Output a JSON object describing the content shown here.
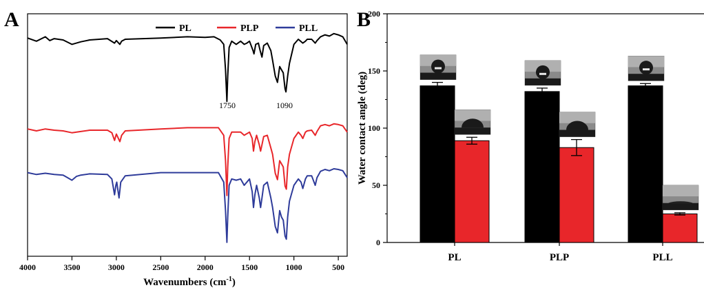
{
  "chart_data": [
    {
      "panel": "A",
      "type": "line",
      "xlabel": "Wavenumbers (cm",
      "xlabel_sup": "-1",
      "xlabel_end": ")",
      "xlim": [
        4000,
        400
      ],
      "xticks": [
        "4000",
        "3500",
        "3000",
        "2500",
        "2000",
        "1500",
        "1000",
        "500"
      ],
      "legend_position": "top-right",
      "annotations": [
        "1750",
        "1090"
      ],
      "series": [
        {
          "name": "PL",
          "color": "#000000",
          "offset": 0.9,
          "points": [
            [
              4000,
              0
            ],
            [
              3900,
              -0.05
            ],
            [
              3800,
              0.02
            ],
            [
              3750,
              -0.04
            ],
            [
              3700,
              -0.01
            ],
            [
              3600,
              -0.03
            ],
            [
              3500,
              -0.1
            ],
            [
              3400,
              -0.06
            ],
            [
              3300,
              -0.03
            ],
            [
              3100,
              -0.01
            ],
            [
              3020,
              -0.08
            ],
            [
              3000,
              -0.04
            ],
            [
              2960,
              -0.1
            ],
            [
              2940,
              -0.05
            ],
            [
              2900,
              -0.02
            ],
            [
              2500,
              0
            ],
            [
              2200,
              0.02
            ],
            [
              2000,
              0.01
            ],
            [
              1900,
              0.02
            ],
            [
              1830,
              -0.03
            ],
            [
              1790,
              -0.1
            ],
            [
              1770,
              -0.5
            ],
            [
              1755,
              -1.0
            ],
            [
              1745,
              -0.6
            ],
            [
              1730,
              -0.15
            ],
            [
              1700,
              -0.05
            ],
            [
              1650,
              -0.1
            ],
            [
              1600,
              -0.05
            ],
            [
              1560,
              -0.1
            ],
            [
              1530,
              -0.08
            ],
            [
              1500,
              -0.05
            ],
            [
              1460,
              -0.2
            ],
            [
              1450,
              -0.25
            ],
            [
              1430,
              -0.1
            ],
            [
              1400,
              -0.08
            ],
            [
              1380,
              -0.2
            ],
            [
              1360,
              -0.3
            ],
            [
              1340,
              -0.12
            ],
            [
              1300,
              -0.08
            ],
            [
              1260,
              -0.2
            ],
            [
              1240,
              -0.35
            ],
            [
              1210,
              -0.6
            ],
            [
              1185,
              -0.7
            ],
            [
              1160,
              -0.45
            ],
            [
              1140,
              -0.5
            ],
            [
              1120,
              -0.55
            ],
            [
              1100,
              -0.8
            ],
            [
              1090,
              -0.85
            ],
            [
              1070,
              -0.6
            ],
            [
              1050,
              -0.4
            ],
            [
              1000,
              -0.1
            ],
            [
              950,
              -0.02
            ],
            [
              900,
              -0.08
            ],
            [
              870,
              -0.05
            ],
            [
              850,
              -0.02
            ],
            [
              800,
              -0.02
            ],
            [
              760,
              -0.08
            ],
            [
              740,
              -0.04
            ],
            [
              700,
              0.02
            ],
            [
              650,
              0.05
            ],
            [
              600,
              0.03
            ],
            [
              550,
              0.07
            ],
            [
              500,
              0.05
            ],
            [
              450,
              0.02
            ],
            [
              400,
              -0.1
            ]
          ]
        },
        {
          "name": "PLP",
          "color": "#e8262a",
          "offset": 0.525,
          "points": [
            [
              4000,
              0
            ],
            [
              3900,
              -0.03
            ],
            [
              3800,
              0
            ],
            [
              3700,
              -0.02
            ],
            [
              3600,
              -0.03
            ],
            [
              3500,
              -0.06
            ],
            [
              3400,
              -0.04
            ],
            [
              3300,
              -0.02
            ],
            [
              3100,
              -0.02
            ],
            [
              3050,
              -0.06
            ],
            [
              3020,
              -0.18
            ],
            [
              3000,
              -0.08
            ],
            [
              2960,
              -0.2
            ],
            [
              2940,
              -0.1
            ],
            [
              2900,
              -0.03
            ],
            [
              2500,
              0
            ],
            [
              2200,
              0.02
            ],
            [
              2000,
              0.02
            ],
            [
              1850,
              0.02
            ],
            [
              1790,
              -0.1
            ],
            [
              1770,
              -0.5
            ],
            [
              1755,
              -1.05
            ],
            [
              1745,
              -0.6
            ],
            [
              1730,
              -0.15
            ],
            [
              1700,
              -0.05
            ],
            [
              1650,
              -0.05
            ],
            [
              1600,
              -0.05
            ],
            [
              1560,
              -0.1
            ],
            [
              1500,
              -0.05
            ],
            [
              1470,
              -0.15
            ],
            [
              1455,
              -0.35
            ],
            [
              1440,
              -0.2
            ],
            [
              1420,
              -0.1
            ],
            [
              1390,
              -0.25
            ],
            [
              1375,
              -0.35
            ],
            [
              1360,
              -0.25
            ],
            [
              1340,
              -0.12
            ],
            [
              1300,
              -0.1
            ],
            [
              1260,
              -0.3
            ],
            [
              1240,
              -0.4
            ],
            [
              1210,
              -0.7
            ],
            [
              1185,
              -0.8
            ],
            [
              1160,
              -0.5
            ],
            [
              1140,
              -0.55
            ],
            [
              1120,
              -0.6
            ],
            [
              1100,
              -0.9
            ],
            [
              1085,
              -0.95
            ],
            [
              1070,
              -0.6
            ],
            [
              1050,
              -0.4
            ],
            [
              1000,
              -0.15
            ],
            [
              950,
              -0.05
            ],
            [
              920,
              -0.1
            ],
            [
              900,
              -0.15
            ],
            [
              870,
              -0.05
            ],
            [
              850,
              -0.03
            ],
            [
              800,
              -0.02
            ],
            [
              760,
              -0.1
            ],
            [
              740,
              -0.04
            ],
            [
              700,
              0.05
            ],
            [
              650,
              0.07
            ],
            [
              600,
              0.05
            ],
            [
              550,
              0.08
            ],
            [
              500,
              0.07
            ],
            [
              450,
              0.05
            ],
            [
              400,
              -0.05
            ]
          ]
        },
        {
          "name": "PLL",
          "color": "#2e3b9a",
          "offset": 0.345,
          "points": [
            [
              4000,
              0
            ],
            [
              3900,
              -0.03
            ],
            [
              3800,
              -0.01
            ],
            [
              3700,
              -0.03
            ],
            [
              3600,
              -0.04
            ],
            [
              3550,
              -0.08
            ],
            [
              3500,
              -0.12
            ],
            [
              3450,
              -0.06
            ],
            [
              3400,
              -0.04
            ],
            [
              3300,
              -0.02
            ],
            [
              3100,
              -0.03
            ],
            [
              3050,
              -0.1
            ],
            [
              3020,
              -0.35
            ],
            [
              3005,
              -0.2
            ],
            [
              2995,
              -0.15
            ],
            [
              2970,
              -0.4
            ],
            [
              2950,
              -0.15
            ],
            [
              2900,
              -0.05
            ],
            [
              2500,
              0
            ],
            [
              2200,
              0
            ],
            [
              2000,
              0
            ],
            [
              1850,
              0
            ],
            [
              1790,
              -0.15
            ],
            [
              1770,
              -0.6
            ],
            [
              1755,
              -1.1
            ],
            [
              1745,
              -0.7
            ],
            [
              1730,
              -0.2
            ],
            [
              1700,
              -0.1
            ],
            [
              1650,
              -0.12
            ],
            [
              1600,
              -0.1
            ],
            [
              1560,
              -0.2
            ],
            [
              1500,
              -0.1
            ],
            [
              1470,
              -0.3
            ],
            [
              1455,
              -0.55
            ],
            [
              1440,
              -0.35
            ],
            [
              1420,
              -0.2
            ],
            [
              1390,
              -0.4
            ],
            [
              1375,
              -0.55
            ],
            [
              1360,
              -0.4
            ],
            [
              1340,
              -0.2
            ],
            [
              1300,
              -0.15
            ],
            [
              1260,
              -0.4
            ],
            [
              1240,
              -0.55
            ],
            [
              1210,
              -0.85
            ],
            [
              1185,
              -0.95
            ],
            [
              1160,
              -0.6
            ],
            [
              1140,
              -0.7
            ],
            [
              1120,
              -0.75
            ],
            [
              1100,
              -1.0
            ],
            [
              1085,
              -1.05
            ],
            [
              1070,
              -0.7
            ],
            [
              1050,
              -0.45
            ],
            [
              1000,
              -0.2
            ],
            [
              950,
              -0.1
            ],
            [
              920,
              -0.15
            ],
            [
              900,
              -0.25
            ],
            [
              870,
              -0.1
            ],
            [
              850,
              -0.05
            ],
            [
              800,
              -0.05
            ],
            [
              760,
              -0.2
            ],
            [
              740,
              -0.08
            ],
            [
              700,
              0.02
            ],
            [
              650,
              0.05
            ],
            [
              600,
              0.03
            ],
            [
              550,
              0.06
            ],
            [
              500,
              0.05
            ],
            [
              450,
              0.03
            ],
            [
              400,
              -0.08
            ]
          ]
        }
      ]
    },
    {
      "panel": "B",
      "type": "bar",
      "ylabel": "Water contact angle (deg)",
      "ylim": [
        0,
        200
      ],
      "yticks": [
        "0",
        "50",
        "100",
        "150",
        "200"
      ],
      "categories": [
        "PL",
        "PLP",
        "PLL"
      ],
      "series": [
        {
          "color": "#000000",
          "values": [
            137,
            132,
            137
          ],
          "errors": [
            3,
            3,
            2
          ]
        },
        {
          "color": "#e8262a",
          "values": [
            89,
            83,
            25
          ],
          "errors": [
            3,
            7,
            1
          ]
        }
      ]
    }
  ]
}
